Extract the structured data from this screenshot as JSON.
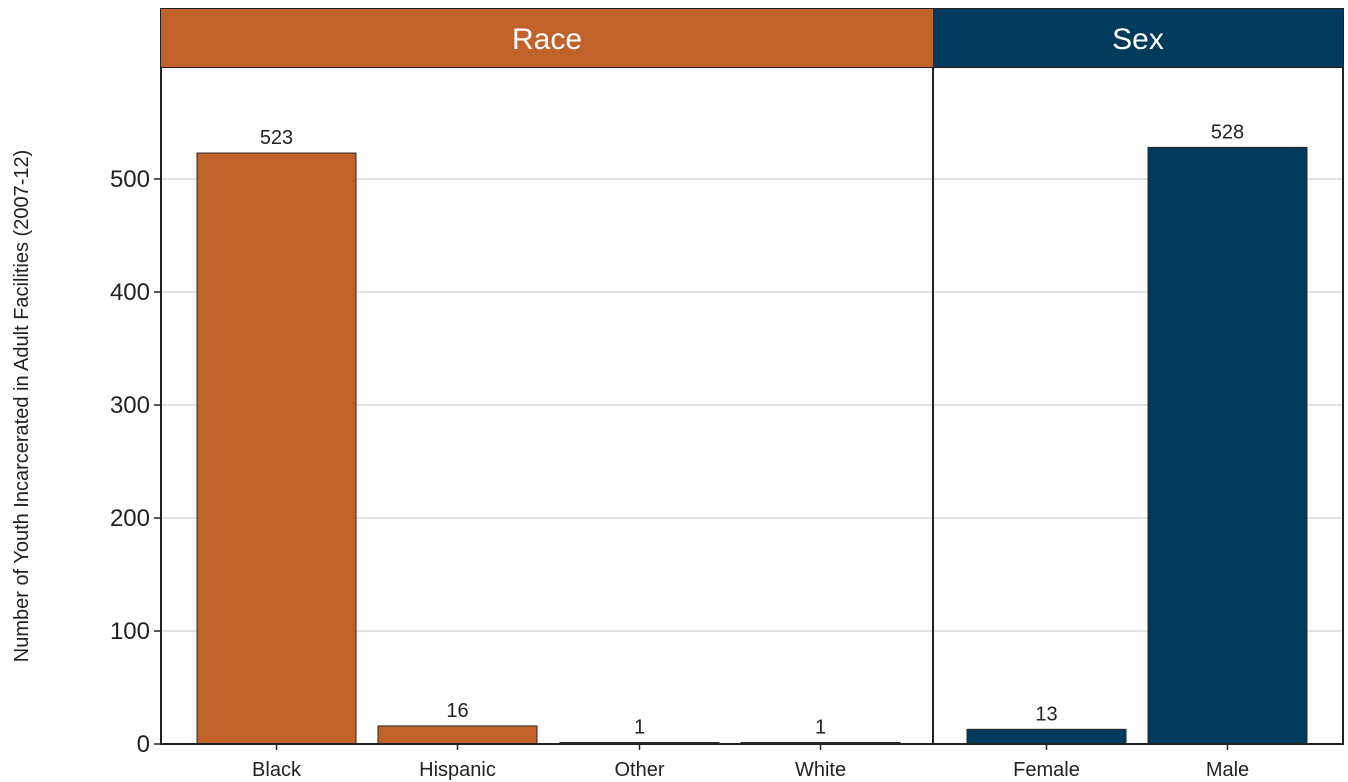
{
  "chart_data": {
    "type": "bar",
    "ylabel": "Number of Youth Incarcerated in Adult Facilities (2007-12)",
    "ylim": [
      0,
      600
    ],
    "yticks": [
      0,
      100,
      200,
      300,
      400,
      500
    ],
    "grid": true,
    "panels": [
      {
        "title": "Race",
        "color": "#c0622a",
        "categories": [
          "Black",
          "Hispanic",
          "Other",
          "White"
        ],
        "values": [
          523,
          16,
          1,
          1
        ],
        "labels": [
          "523",
          "16",
          "1",
          "1"
        ]
      },
      {
        "title": "Sex",
        "color": "#003a5d",
        "categories": [
          "Female",
          "Male"
        ],
        "values": [
          13,
          528
        ],
        "labels": [
          "13",
          "528"
        ]
      }
    ]
  },
  "colors": {
    "grid": "#e3e3e3",
    "frame": "#222222",
    "bar_outline": "#2a2a2a"
  }
}
